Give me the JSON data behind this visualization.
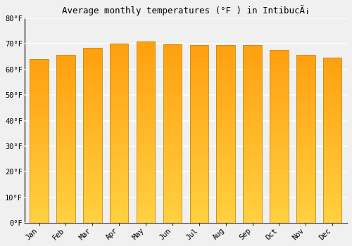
{
  "title": "Average monthly temperatures (°F ) in IntibucÃ¡",
  "months": [
    "Jan",
    "Feb",
    "Mar",
    "Apr",
    "May",
    "Jun",
    "Jul",
    "Aug",
    "Sep",
    "Oct",
    "Nov",
    "Dec"
  ],
  "values": [
    64.0,
    65.7,
    68.5,
    70.2,
    71.0,
    69.8,
    69.4,
    69.4,
    69.6,
    67.5,
    65.7,
    64.6
  ],
  "ylim": [
    0,
    80
  ],
  "yticks": [
    0,
    10,
    20,
    30,
    40,
    50,
    60,
    70,
    80
  ],
  "ytick_labels": [
    "0°F",
    "10°F",
    "20°F",
    "30°F",
    "40°F",
    "50°F",
    "60°F",
    "70°F",
    "80°F"
  ],
  "bg_color": "#f0f0f0",
  "plot_bg_color": "#f0f0f0",
  "grid_color": "#ffffff",
  "bar_color_bottom": "#FFD040",
  "bar_color_top": "#FFA010",
  "bar_edge_color": "#CC8800",
  "title_fontsize": 9,
  "tick_fontsize": 7.5,
  "bar_width": 0.7,
  "n_gradient_segments": 60
}
